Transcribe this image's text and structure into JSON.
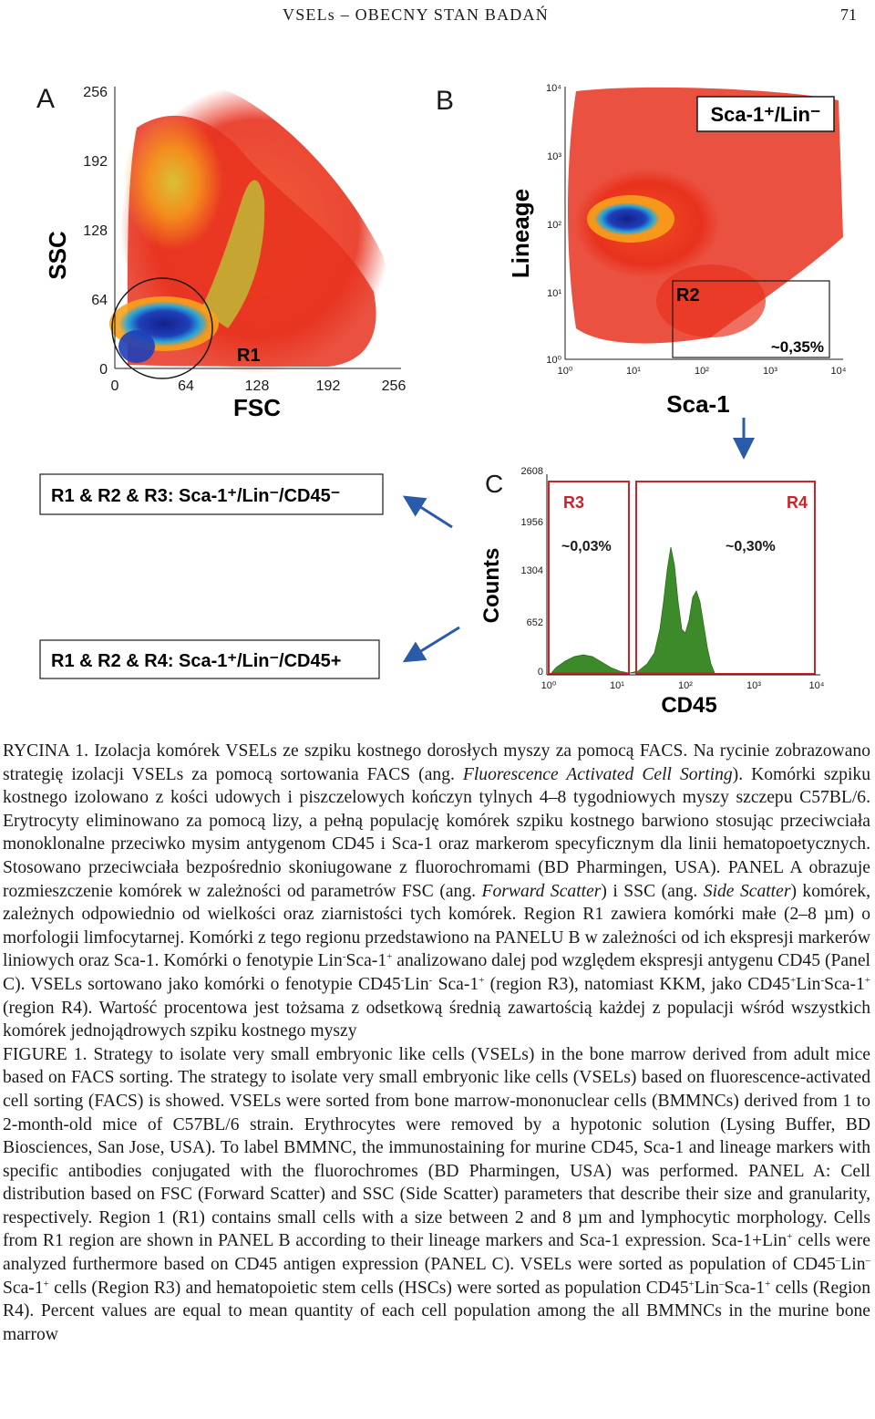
{
  "header": {
    "running_title": "VSELs – OBECNY STAN BADAŃ",
    "page_number": "71"
  },
  "figure": {
    "panel_a": {
      "letter": "A",
      "x_label": "FSC",
      "y_label": "SSC",
      "x_ticks": [
        "0",
        "64",
        "128",
        "192",
        "256"
      ],
      "y_ticks": [
        "0",
        "64",
        "128",
        "192",
        "256"
      ],
      "gate_label": "R1"
    },
    "panel_b": {
      "letter": "B",
      "x_label": "Sca-1",
      "y_label": "Lineage",
      "x_ticks": [
        "10⁰",
        "10¹",
        "10²",
        "10³",
        "10⁴"
      ],
      "y_ticks": [
        "10⁰",
        "10¹",
        "10²",
        "10³",
        "10⁴"
      ],
      "title_box": "Sca-1⁺/Lin⁻",
      "gate_label": "R2",
      "gate_percent": "~0,35%"
    },
    "panel_c": {
      "letter": "C",
      "x_label": "CD45",
      "y_label": "Counts",
      "x_ticks": [
        "10⁰",
        "10¹",
        "10²",
        "10³",
        "10⁴"
      ],
      "y_ticks": [
        "2608",
        "1956",
        "1304",
        "652",
        "0"
      ],
      "r3_label": "R3",
      "r3_percent": "~0,03%",
      "r4_label": "R4",
      "r4_percent": "~0,30%"
    },
    "result_box_1": "R1 & R2 & R3: Sca-1⁺/Lin⁻/CD45⁻",
    "result_box_2": "R1 & R2 & R4: Sca-1⁺/Lin⁻/CD45+",
    "colors": {
      "arrow": "#2a5ba8",
      "gate": "#c8242c",
      "histogram": "#3d8a2a",
      "density_low": "#e8321e",
      "density_mid": "#f7a21b",
      "density_high": "#1c2fa0"
    }
  },
  "caption": {
    "pl_1": "RYCINA 1. Izolacja komórek VSELs ze szpiku kostnego dorosłych myszy za pomocą FACS. Na rycinie zobrazowano strategię izolacji VSELs za pomocą sortowania FACS (ang. ",
    "pl_italic_1": "Fluorescence Activated Cell Sorting",
    "pl_2": "). Komórki szpiku kostnego izolowano z kości udowych i piszczelowych kończyn tylnych 4–8 tygodniowych myszy szczepu C57BL/6. Erytrocyty eliminowano za pomocą lizy, a pełną populację komórek szpiku kostnego barwiono stosując przeciwciała monoklonalne przeciwko mysim antygenom CD45 i Sca-1 oraz markerom specyficznym dla linii hematopoetycznych. Stosowano przeciwciała bezpośrednio skoniugowane z fluorochromami (BD Pharmingen, USA). PANEL A obrazuje rozmieszczenie komórek w zależności od parametrów FSC (ang. ",
    "pl_italic_2": "Forward Scatter",
    "pl_3": ") i SSC (ang. ",
    "pl_italic_3": "Side Scatter",
    "pl_4": ") komórek, zależnych odpowiednio od wielkości oraz ziarnistości tych komórek. Region R1 zawiera komórki małe (2–8 µm) o morfologii limfocytarnej. Komórki z tego regionu przedstawiono na PANELU B w zależności od ich ekspresji markerów liniowych oraz Sca-1. Komórki o fenotypie Lin",
    "pl_5": "Sca-1",
    "pl_6": " analizowano dalej pod względem ekspresji antygenu CD45 (Panel C). VSELs sortowano jako komórki o fenotypie CD45",
    "pl_7": "Lin",
    "pl_8": " Sca-1",
    "pl_9": " (region R3), natomiast KKM, jako CD45",
    "pl_10": "Lin",
    "pl_11": "Sca-1",
    "pl_12": " (region R4). Wartość procentowa jest tożsama z odsetkową średnią zawartością każdej z populacji wśród wszystkich komórek jednojądrowych szpiku kostnego myszy",
    "en_1": "FIGURE 1. Strategy to isolate very small embryonic like cells (VSELs) in the bone marrow derived from adult mice based on FACS sorting. The strategy to isolate very small embryonic like cells (VSELs) based on fluorescence-activated cell sorting (FACS) is showed. VSELs were sorted from bone marrow-mononuclear cells (BMMNCs) derived from 1 to 2-month-old mice of C57BL/6 strain. Erythrocytes were removed by a hypotonic solution (Lysing Buffer, BD Biosciences, San Jose, USA). To label BMMNC, the immunostaining for murine CD45, Sca-1 and lineage markers with specific antibodies conjugated with the fluorochromes (BD Pharmingen, USA) was performed. PANEL A: Cell distribution based on FSC (Forward Scatter) and SSC (Side Scatter) parameters that describe their size and granularity, respectively. Region 1 (R1) contains small cells with a size between 2 and 8 µm and lymphocytic morphology. Cells from R1 region are shown in PANEL B according to their lineage markers and Sca-1 expression. Sca-1+Lin",
    "en_2": " cells were analyzed furthermore based on CD45 antigen expression (PANEL C). VSELs were sorted as population of CD45",
    "en_3": "Lin",
    "en_4": "Sca-1",
    "en_5": " cells (Region R3) and hematopoietic stem cells (HSCs) were sorted as population CD45",
    "en_6": "Lin",
    "en_7": "Sca-1",
    "en_8": " cells (Region R4). Percent values are equal to mean quantity of each cell population among the all BMMNCs in the murine bone marrow",
    "sup_minus": "-",
    "sup_plus": "+",
    "sup_dash": "–"
  }
}
